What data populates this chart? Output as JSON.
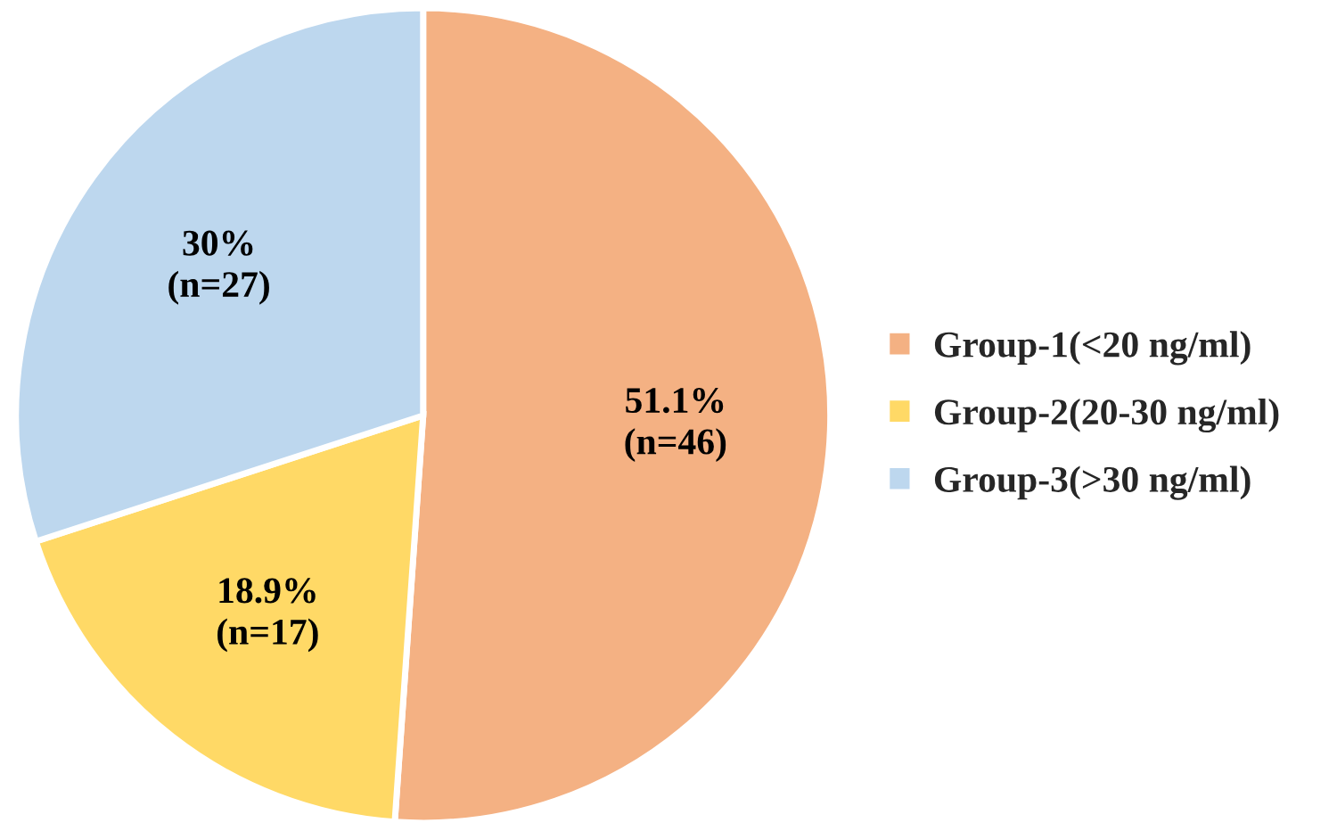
{
  "chart_data": {
    "type": "pie",
    "categories": [
      "Group-1(<20 ng/ml)",
      "Group-2(20-30 ng/ml)",
      "Group-3(>30 ng/ml)"
    ],
    "values": [
      46,
      17,
      27
    ],
    "value_labels": [
      "51.1%\n(n=46)",
      "18.9%\n(n=17)",
      "30%\n(n=27)"
    ],
    "colors": [
      "#f4b183",
      "#ffd966",
      "#bdd7ee"
    ],
    "legend": "right"
  }
}
